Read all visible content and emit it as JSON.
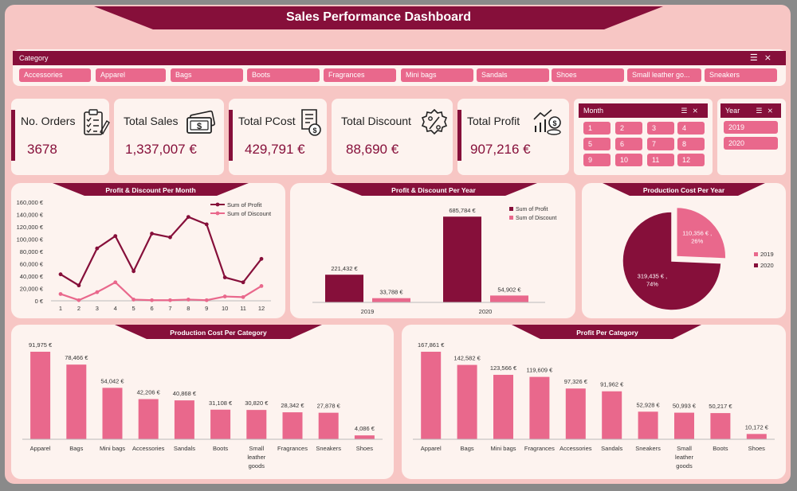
{
  "title": "Sales Performance Dashboard",
  "colors": {
    "dark": "#860f3a",
    "pink": "#e9688c",
    "bg": "#f7c6c4",
    "panel": "#fdf3ef"
  },
  "category_slicer": {
    "label": "Category",
    "items": [
      "Accessories",
      "Apparel",
      "Bags",
      "Boots",
      "Fragrances",
      "Mini bags",
      "Sandals",
      "Shoes",
      "Small leather go...",
      "Sneakers"
    ]
  },
  "kpis": [
    {
      "label": "No. Orders",
      "value": "3678",
      "icon": "clipboard-checklist-icon"
    },
    {
      "label": "Total Sales",
      "value": "1,337,007  €",
      "icon": "money-bill-icon"
    },
    {
      "label": "Total PCost",
      "value": "429,791  €",
      "icon": "invoice-coin-icon"
    },
    {
      "label": "Total Discount",
      "value": "88,690  €",
      "icon": "discount-badge-icon"
    },
    {
      "label": "Total Profit",
      "value": "907,216  €",
      "icon": "profit-coins-icon"
    }
  ],
  "month_slicer": {
    "label": "Month",
    "items": [
      "1",
      "2",
      "3",
      "4",
      "5",
      "6",
      "7",
      "8",
      "9",
      "10",
      "11",
      "12"
    ]
  },
  "year_slicer": {
    "label": "Year",
    "items": [
      "2019",
      "2020"
    ]
  },
  "chart_data": [
    {
      "type": "line",
      "title": "Profit & Discount  Per Month",
      "x": [
        "1",
        "2",
        "3",
        "4",
        "5",
        "6",
        "7",
        "8",
        "9",
        "10",
        "11",
        "12"
      ],
      "series": [
        {
          "name": "Sum of Profit",
          "values": [
            43000,
            25000,
            85000,
            105000,
            48000,
            109000,
            103000,
            136000,
            124000,
            38000,
            30000,
            68000
          ],
          "color": "#860f3a"
        },
        {
          "name": "Sum of Discount",
          "values": [
            11000,
            1000,
            14000,
            30000,
            2000,
            1000,
            1000,
            2000,
            1000,
            7000,
            6000,
            24000
          ],
          "color": "#e9688c"
        }
      ],
      "yticks": [
        "0 €",
        "20,000 €",
        "40,000 €",
        "60,000 €",
        "80,000 €",
        "100,000 €",
        "120,000 €",
        "140,000 €",
        "160,000 €"
      ],
      "ylim": [
        0,
        160000
      ],
      "legend": "top-right"
    },
    {
      "type": "bar",
      "title": "Profit & Discount  Per Year",
      "categories": [
        "2019",
        "2020"
      ],
      "series": [
        {
          "name": "Sum of Profit",
          "values": [
            221432,
            685784
          ],
          "labels": [
            "221,432 €",
            "685,784 €"
          ],
          "color": "#860f3a"
        },
        {
          "name": "Sum of Discount",
          "values": [
            33788,
            54902
          ],
          "labels": [
            "33,788 €",
            "54,902 €"
          ],
          "color": "#e9688c"
        }
      ],
      "legend": "top-right"
    },
    {
      "type": "pie",
      "title": "Production Cost Per Year",
      "labels": [
        "2019",
        "2020"
      ],
      "values": [
        110356,
        319435
      ],
      "slice_labels": [
        "110,356 € ,\n26%",
        "319,435 € ,\n74%"
      ],
      "colors": [
        "#e9688c",
        "#860f3a"
      ],
      "legend": "right"
    },
    {
      "type": "bar",
      "title": "Production Cost Per Category",
      "categories": [
        "Apparel",
        "Bags",
        "Mini bags",
        "Accessories",
        "Sandals",
        "Boots",
        "Small leather goods",
        "Fragrances",
        "Sneakers",
        "Shoes"
      ],
      "values": [
        91975,
        78466,
        54042,
        42206,
        40868,
        31108,
        30820,
        28342,
        27878,
        4086
      ],
      "labels": [
        "91,975 €",
        "78,466 €",
        "54,042 €",
        "42,206 €",
        "40,868 €",
        "31,108 €",
        "30,820 €",
        "28,342 €",
        "27,878 €",
        "4,086 €"
      ],
      "color": "#e9688c"
    },
    {
      "type": "bar",
      "title": "Profit Per Category",
      "categories": [
        "Apparel",
        "Bags",
        "Mini bags",
        "Fragrances",
        "Accessories",
        "Sandals",
        "Sneakers",
        "Small leather goods",
        "Boots",
        "Shoes"
      ],
      "values": [
        167861,
        142582,
        123566,
        119609,
        97326,
        91962,
        52928,
        50993,
        50217,
        10172
      ],
      "labels": [
        "167,861 €",
        "142,582 €",
        "123,566 €",
        "119,609 €",
        "97,326 €",
        "91,962 €",
        "52,928 €",
        "50,993 €",
        "50,217 €",
        "10,172 €"
      ],
      "color": "#e9688c"
    }
  ]
}
